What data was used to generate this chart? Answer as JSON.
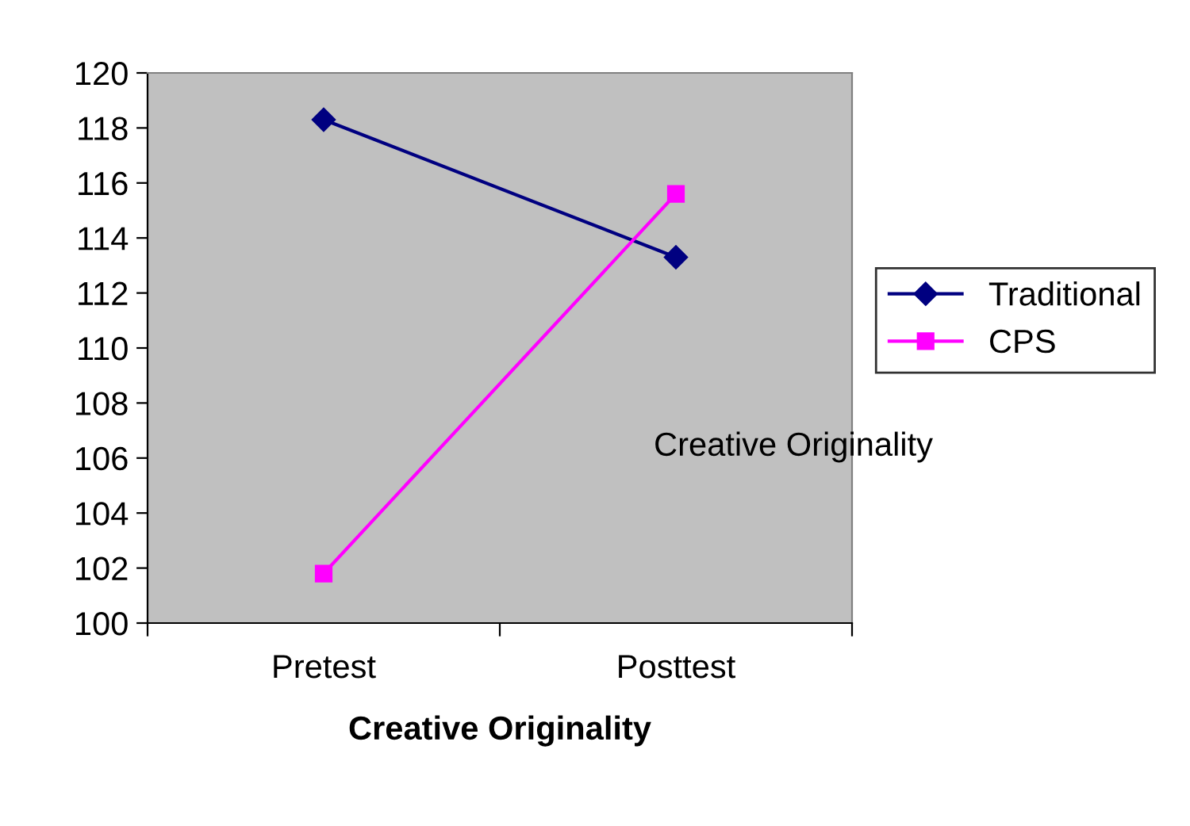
{
  "chart_data": {
    "type": "line",
    "xlabel": "Creative Originality",
    "categories": [
      "Pretest",
      "Posttest"
    ],
    "series": [
      {
        "name": "Traditional",
        "color": "#000080",
        "marker": "diamond",
        "values": [
          118.3,
          113.3
        ]
      },
      {
        "name": "CPS",
        "color": "#ff00ff",
        "marker": "square",
        "values": [
          101.8,
          115.6
        ]
      }
    ],
    "ylim": [
      100,
      120
    ],
    "yticks": [
      100,
      102,
      104,
      106,
      108,
      110,
      112,
      114,
      116,
      118,
      120
    ],
    "grid": false,
    "legend": "right",
    "annotations": [
      "Creative Originality"
    ]
  }
}
